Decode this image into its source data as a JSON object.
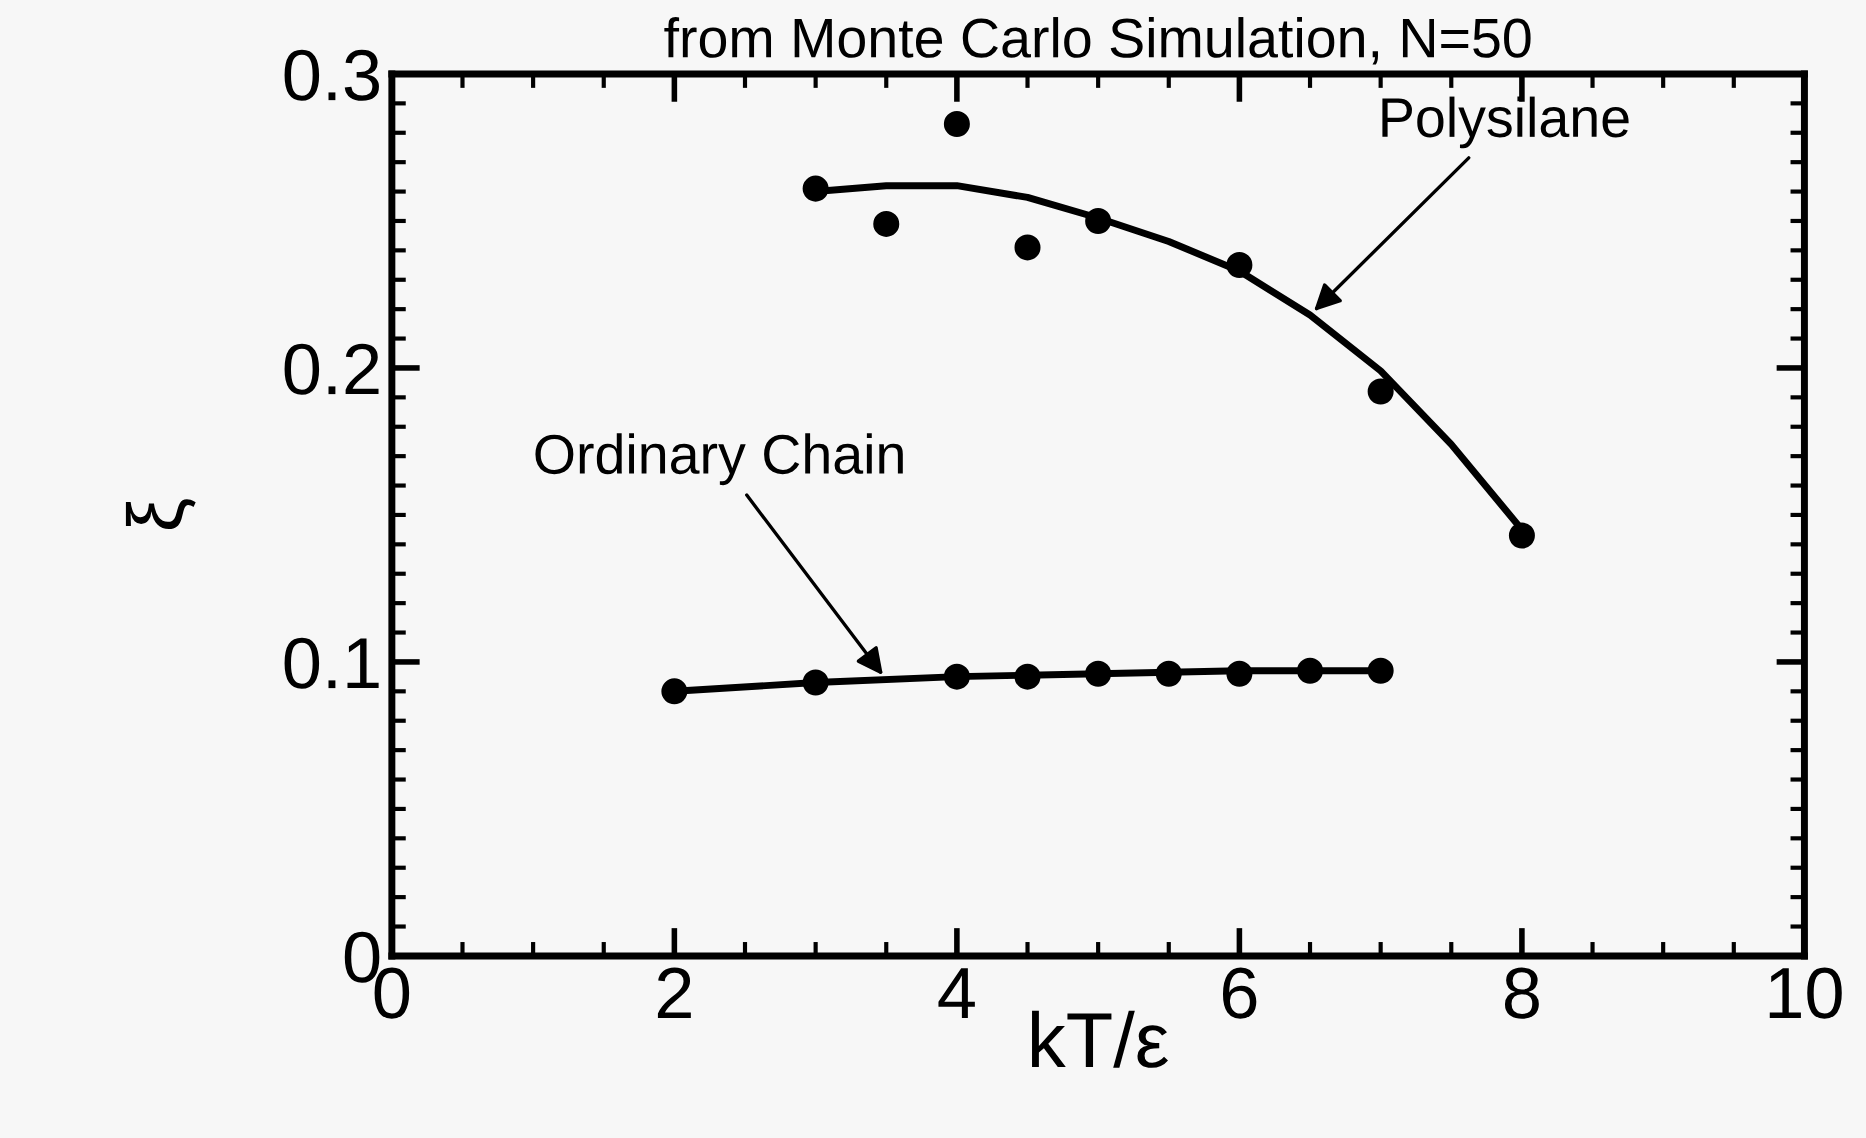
{
  "chart_data": {
    "type": "scatter",
    "title": "from Monte Carlo Simulation, N=50",
    "xlabel": "kT/ε",
    "ylabel": "ξ",
    "xlim": [
      0,
      10
    ],
    "xticks": [
      0,
      2,
      4,
      6,
      8,
      10
    ],
    "ylim": [
      0,
      0.3
    ],
    "yticks": [
      0,
      0.1,
      0.2,
      0.3
    ],
    "grid": false,
    "marker": "circle",
    "series": [
      {
        "color": "#000000",
        "x": [
          3,
          3.5,
          4,
          4.5,
          5,
          6,
          7,
          8
        ],
        "values": [
          0.261,
          0.249,
          0.283,
          0.241,
          0.25,
          0.235,
          0.192,
          0.143
        ]
      },
      {
        "type": "line",
        "color": "#000000",
        "marker": "none",
        "line_style": "solid",
        "x": [
          3,
          3.5,
          4,
          4.5,
          5,
          5.5,
          6,
          6.5,
          7,
          7.5,
          8
        ],
        "values": [
          0.26,
          0.262,
          0.262,
          0.258,
          0.251,
          0.243,
          0.233,
          0.218,
          0.199,
          0.174,
          0.145
        ]
      },
      {
        "color": "#000000",
        "x": [
          2,
          3,
          4,
          4.5,
          5,
          5.5,
          6,
          6.5,
          7
        ],
        "values": [
          0.09,
          0.093,
          0.095,
          0.095,
          0.096,
          0.096,
          0.096,
          0.097,
          0.097
        ]
      },
      {
        "type": "line",
        "color": "#000000",
        "marker": "none",
        "line_style": "solid",
        "x": [
          2,
          3,
          4,
          5,
          6,
          7
        ],
        "values": [
          0.09,
          0.093,
          0.095,
          0.096,
          0.097,
          0.097
        ]
      }
    ],
    "annotations": [
      {
        "text": "Polysilane",
        "x": 6.5,
        "y": 0.218
      },
      {
        "text": "Ordinary Chain",
        "x": 3.5,
        "y": 0.094
      }
    ]
  }
}
